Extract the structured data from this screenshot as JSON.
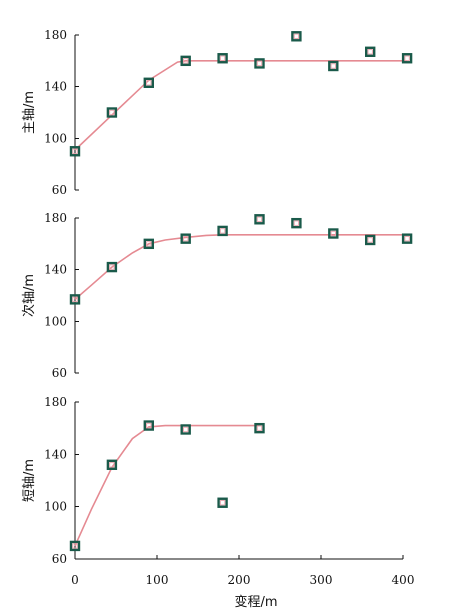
{
  "chart_data": [
    {
      "type": "scatter",
      "title": "",
      "xlabel": "",
      "ylabel": "主轴/m",
      "xlim": [
        0,
        400
      ],
      "ylim": [
        60,
        180
      ],
      "y_ticks": [
        60,
        100,
        140,
        180
      ],
      "grid": false,
      "series": [
        {
          "kind": "points",
          "x": [
            0,
            45,
            90,
            135,
            180,
            225,
            270,
            315,
            360,
            405
          ],
          "y": [
            90,
            120,
            143,
            160,
            162,
            158,
            179,
            156,
            167,
            162
          ]
        },
        {
          "kind": "fit-line",
          "x": [
            0,
            45,
            90,
            125,
            135,
            200,
            300,
            405
          ],
          "y": [
            91,
            118,
            145,
            159,
            160,
            160,
            160,
            160
          ]
        }
      ]
    },
    {
      "type": "scatter",
      "title": "",
      "xlabel": "",
      "ylabel": "次轴/m",
      "xlim": [
        0,
        400
      ],
      "ylim": [
        60,
        180
      ],
      "y_ticks": [
        60,
        100,
        140,
        180
      ],
      "grid": false,
      "series": [
        {
          "kind": "points",
          "x": [
            0,
            45,
            90,
            135,
            180,
            225,
            270,
            315,
            360,
            405
          ],
          "y": [
            117,
            142,
            160,
            164,
            170,
            179,
            176,
            168,
            163,
            164
          ]
        },
        {
          "kind": "fit-line",
          "x": [
            0,
            20,
            45,
            70,
            90,
            110,
            135,
            160,
            180,
            220,
            300,
            405
          ],
          "y": [
            117,
            128,
            142,
            153,
            160,
            163,
            165,
            166.5,
            167,
            167,
            167,
            167
          ]
        }
      ]
    },
    {
      "type": "scatter",
      "title": "",
      "xlabel": "变程/m",
      "ylabel": "短轴/m",
      "xlim": [
        0,
        400
      ],
      "ylim": [
        60,
        180
      ],
      "y_ticks": [
        60,
        100,
        140,
        180
      ],
      "x_ticks": [
        0,
        100,
        200,
        300,
        400
      ],
      "grid": false,
      "series": [
        {
          "kind": "points",
          "x": [
            0,
            45,
            90,
            135,
            180,
            225
          ],
          "y": [
            70,
            132,
            162,
            159,
            103,
            160
          ]
        },
        {
          "kind": "fit-line",
          "x": [
            0,
            20,
            45,
            70,
            90,
            110,
            135,
            180,
            225
          ],
          "y": [
            70,
            98,
            130,
            152,
            161,
            162,
            162,
            162,
            162
          ]
        }
      ]
    }
  ],
  "style": {
    "point_outer_color": "#1a5a4a",
    "point_inner_color": "#e9a3ad",
    "fit_line_color": "#e58a92",
    "fit_flat_color": "#777777"
  }
}
